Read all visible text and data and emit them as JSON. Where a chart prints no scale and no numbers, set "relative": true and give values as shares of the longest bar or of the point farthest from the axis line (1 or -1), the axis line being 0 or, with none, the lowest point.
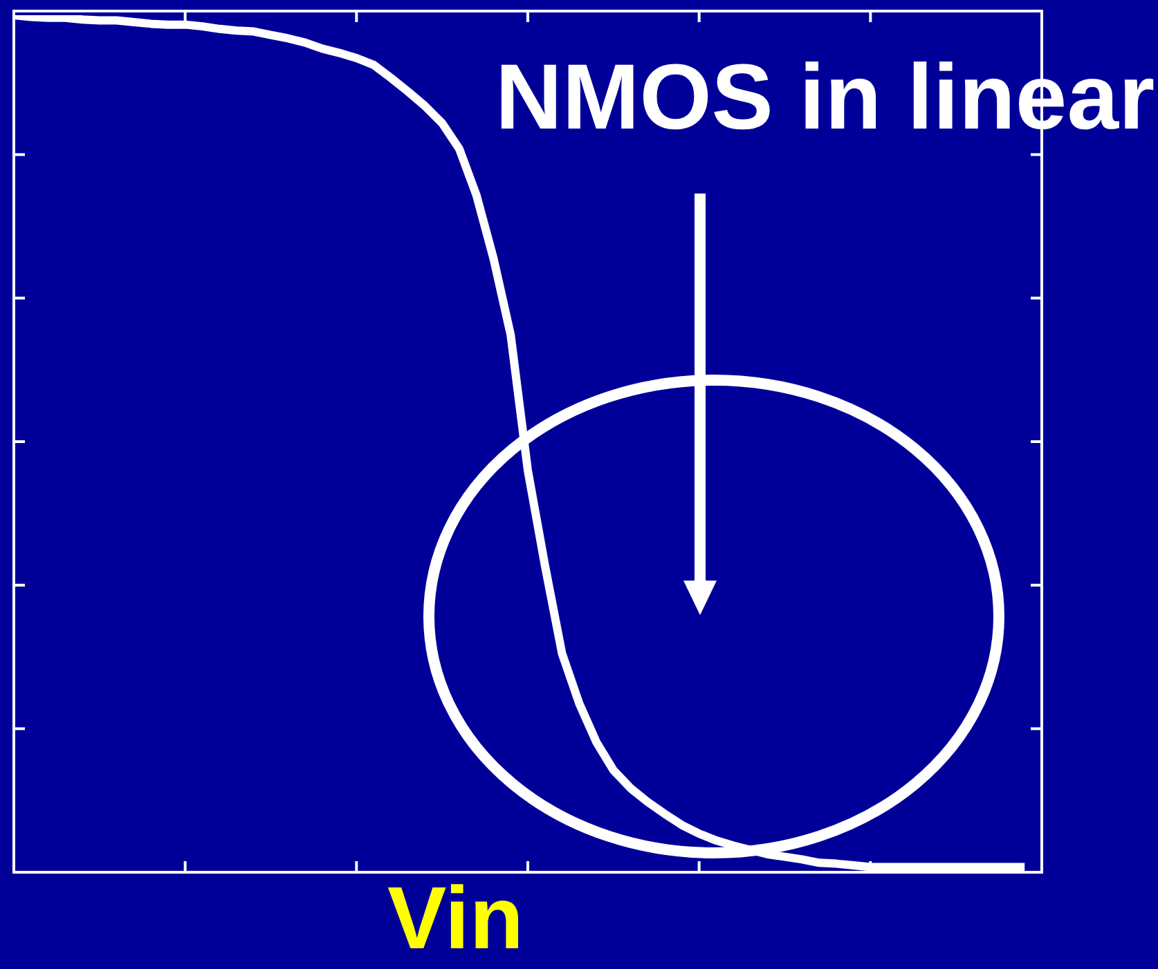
{
  "chart_data": {
    "type": "line",
    "relative": true,
    "xlabel": "Vin",
    "annotations": [
      "NMOS in linear"
    ],
    "tick_labels": false,
    "categories": [
      null,
      null,
      null,
      null,
      null,
      null,
      null,
      null,
      null,
      null,
      null,
      null,
      null,
      null,
      null,
      null,
      null,
      null,
      null,
      null,
      null,
      null,
      null,
      null,
      null,
      null,
      null,
      null,
      null,
      null,
      null,
      null,
      null,
      null,
      null,
      null,
      null,
      null,
      null,
      null,
      null,
      null,
      null,
      null,
      null,
      null,
      null,
      null,
      null,
      null,
      null,
      null,
      null,
      null,
      null,
      null,
      null,
      null,
      null,
      null,
      null
    ],
    "values": [
      1,
      0.998,
      0.997,
      0.997,
      0.995,
      0.994,
      0.994,
      0.992,
      0.99,
      0.989,
      0.989,
      0.987,
      0.984,
      0.982,
      0.981,
      0.977,
      0.973,
      0.968,
      0.961,
      0.956,
      0.95,
      0.942,
      0.927,
      0.911,
      0.894,
      0.874,
      0.844,
      0.79,
      0.716,
      0.627,
      0.469,
      0.358,
      0.255,
      0.197,
      0.152,
      0.119,
      0.098,
      0.082,
      0.068,
      0.055,
      0.045,
      0.037,
      0.031,
      0.026,
      0.021,
      0.018,
      0.015,
      0.011,
      0.01,
      0.008,
      0.006,
      0.006,
      0.006,
      0.006,
      0.006,
      0.006,
      0.006,
      0.006,
      0.006,
      0.006,
      null
    ],
    "color": "#ffffff"
  }
}
